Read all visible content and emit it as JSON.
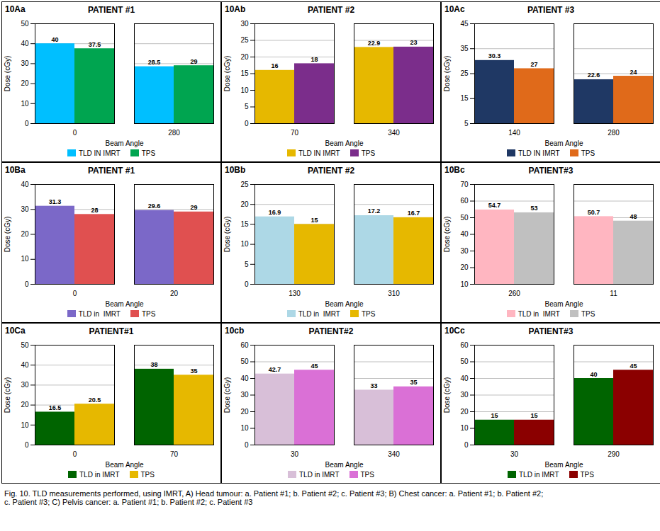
{
  "chart_data": [
    {
      "type": "bar",
      "title": "PATIENT #1",
      "annotations": [
        "10Aa"
      ],
      "xlabel": "Beam Angle",
      "ylabel": "Dose (cGy)",
      "categories": [
        "0",
        "280"
      ],
      "series": [
        {
          "name": "TLD IN IMRT",
          "color": "#00BFFF",
          "values": [
            40,
            28.5
          ]
        },
        {
          "name": "TPS",
          "color": "#00A550",
          "values": [
            37.5,
            29
          ]
        }
      ],
      "ylim": [
        0,
        50
      ],
      "yticks": [
        0,
        10,
        20,
        30,
        40,
        50
      ],
      "grid": true,
      "data_labels": true,
      "legend": "bottom"
    },
    {
      "type": "bar",
      "title": "PATIENT #2",
      "annotations": [
        "10Ab"
      ],
      "xlabel": "Beam Angle",
      "ylabel": "Dose (cGy)",
      "categories": [
        "70",
        "340"
      ],
      "series": [
        {
          "name": "TLD IN IMRT",
          "color": "#E6B800",
          "values": [
            16,
            22.9
          ]
        },
        {
          "name": "TPS",
          "color": "#7B2D8B",
          "values": [
            18,
            23
          ]
        }
      ],
      "ylim": [
        0,
        30
      ],
      "yticks": [
        0,
        5,
        10,
        15,
        20,
        25,
        30
      ],
      "grid": true,
      "data_labels": true,
      "legend": "bottom"
    },
    {
      "type": "bar",
      "title": "PATIENT #3",
      "annotations": [
        "10Ac"
      ],
      "xlabel": "Beam Angle",
      "ylabel": "Dose (cGy)",
      "categories": [
        "140",
        "280"
      ],
      "series": [
        {
          "name": "TLD IN IMRT",
          "color": "#1F3864",
          "values": [
            30.3,
            22.6
          ]
        },
        {
          "name": "TPS",
          "color": "#E06A1A",
          "values": [
            27,
            24
          ]
        }
      ],
      "ylim": [
        5,
        45
      ],
      "yticks": [
        5,
        15,
        25,
        35,
        45
      ],
      "grid": true,
      "data_labels": true,
      "legend": "bottom"
    },
    {
      "type": "bar",
      "title": "PATIENT #1",
      "annotations": [
        "10Ba"
      ],
      "xlabel": "Beam Angle",
      "ylabel": "Dose (cGy)",
      "categories": [
        "0",
        "20"
      ],
      "series": [
        {
          "name": "TLD in  IMRT",
          "color": "#7B68C8",
          "values": [
            31.3,
            29.6
          ]
        },
        {
          "name": "TPS",
          "color": "#E05050",
          "values": [
            28,
            29
          ]
        }
      ],
      "ylim": [
        0,
        40
      ],
      "yticks": [
        0,
        10,
        20,
        30,
        40
      ],
      "grid": true,
      "data_labels": true,
      "legend": "bottom"
    },
    {
      "type": "bar",
      "title": "PATIENT #2",
      "annotations": [
        "10Bb"
      ],
      "xlabel": "Beam Angle",
      "ylabel": "Dose (cGy)",
      "categories": [
        "130",
        "310"
      ],
      "series": [
        {
          "name": "TLD in  IMRT",
          "color": "#ADD8E6",
          "values": [
            16.9,
            17.2
          ]
        },
        {
          "name": "TPS",
          "color": "#E6B800",
          "values": [
            15,
            16.7
          ]
        }
      ],
      "ylim": [
        0,
        25
      ],
      "yticks": [
        0,
        5,
        10,
        15,
        20,
        25
      ],
      "grid": true,
      "data_labels": true,
      "legend": "bottom"
    },
    {
      "type": "bar",
      "title": "PATIENT#3",
      "annotations": [
        "10Bc"
      ],
      "xlabel": "Beam Angle",
      "ylabel": "Dose (cGy)",
      "categories": [
        "260",
        "11"
      ],
      "series": [
        {
          "name": "TLD in  IMRT",
          "color": "#FFB6C1",
          "values": [
            54.7,
            50.7
          ]
        },
        {
          "name": "TPS",
          "color": "#C0C0C0",
          "values": [
            53,
            48
          ]
        }
      ],
      "ylim": [
        10,
        70
      ],
      "yticks": [
        10,
        20,
        30,
        40,
        50,
        60,
        70
      ],
      "grid": true,
      "data_labels": true,
      "legend": "bottom"
    },
    {
      "type": "bar",
      "title": "PATIENT#1",
      "annotations": [
        "10Ca"
      ],
      "xlabel": "Beam Angle",
      "ylabel": "Dose (cGy)",
      "categories": [
        "0",
        "70"
      ],
      "series": [
        {
          "name": "TLD in IMRT",
          "color": "#006400",
          "values": [
            16.5,
            38
          ]
        },
        {
          "name": "TPS",
          "color": "#E6B800",
          "values": [
            20.5,
            35
          ]
        }
      ],
      "ylim": [
        0,
        50
      ],
      "yticks": [
        0,
        10,
        20,
        30,
        40,
        50
      ],
      "grid": true,
      "data_labels": true,
      "legend": "bottom"
    },
    {
      "type": "bar",
      "title": "PATIENT#2",
      "annotations": [
        "10cb"
      ],
      "xlabel": "Beam Angle",
      "ylabel": "Dose (cGy)",
      "categories": [
        "30",
        "340"
      ],
      "series": [
        {
          "name": "TLD in IMRT",
          "color": "#D8BFD8",
          "values": [
            42.7,
            33
          ]
        },
        {
          "name": "TPS",
          "color": "#DA70D6",
          "values": [
            45,
            35
          ]
        }
      ],
      "ylim": [
        0,
        60
      ],
      "yticks": [
        0,
        10,
        20,
        30,
        40,
        50,
        60
      ],
      "grid": true,
      "data_labels": true,
      "legend": "bottom"
    },
    {
      "type": "bar",
      "title": "PATIENT#3",
      "annotations": [
        "10Cc"
      ],
      "xlabel": "Beam Angle",
      "ylabel": "Dose (cGy)",
      "categories": [
        "30",
        "290"
      ],
      "series": [
        {
          "name": "TLD in IMRT",
          "color": "#006400",
          "values": [
            15,
            40
          ]
        },
        {
          "name": "TPS",
          "color": "#8B0000",
          "values": [
            15,
            45
          ]
        }
      ],
      "ylim": [
        0,
        60
      ],
      "yticks": [
        0,
        10,
        20,
        30,
        40,
        50,
        60
      ],
      "grid": true,
      "data_labels": true,
      "legend": "bottom"
    }
  ],
  "caption": "Fig. 10. TLD measurements performed, using IMRT, A) Head tumour: a. Patient #1; b. Patient #2; c. Patient #3; B) Chest cancer: a. Patient #1; b. Patient #2;\nc. Patient #3; C) Pelvis cancer: a. Patient #1; b. Patient #2; c. Patient #3"
}
